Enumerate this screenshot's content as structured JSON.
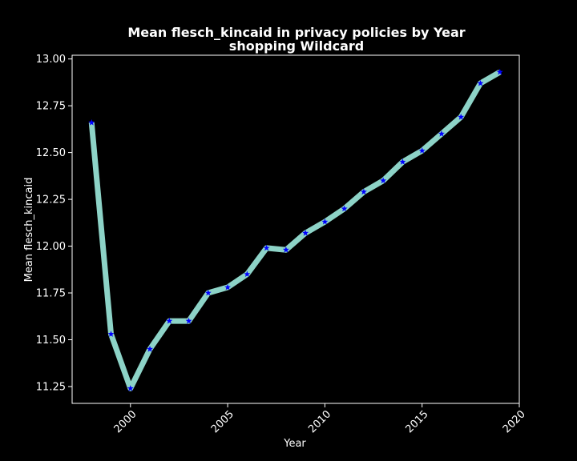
{
  "chart_data": {
    "type": "line",
    "title": "Mean flesch_kincaid in privacy policies by Year",
    "subtitle": "shopping Wildcard",
    "xlabel": "Year",
    "ylabel": "Mean flesch_kincaid",
    "xlim": [
      1997,
      2020
    ],
    "ylim": [
      11.16,
      13.02
    ],
    "xticks": [
      2000,
      2005,
      2010,
      2015,
      2020
    ],
    "yticks": [
      11.25,
      11.5,
      11.75,
      12.0,
      12.25,
      12.5,
      12.75,
      13.0
    ],
    "xtick_labels": [
      "2000",
      "2005",
      "2010",
      "2015",
      "2020"
    ],
    "ytick_labels": [
      "11.25",
      "11.50",
      "11.75",
      "12.00",
      "12.25",
      "12.50",
      "12.75",
      "13.00"
    ],
    "grid": false,
    "series": [
      {
        "x": [
          1998,
          1999,
          2000,
          2001,
          2002,
          2003,
          2004,
          2005,
          2006,
          2007,
          2008,
          2009,
          2010,
          2011,
          2012,
          2013,
          2014,
          2015,
          2016,
          2017,
          2018,
          2019
        ],
        "values": [
          12.66,
          11.53,
          11.24,
          11.45,
          11.6,
          11.6,
          11.75,
          11.78,
          11.85,
          11.99,
          11.98,
          12.07,
          12.13,
          12.2,
          12.29,
          12.35,
          12.45,
          12.51,
          12.6,
          12.69,
          12.87,
          12.93
        ],
        "line_color": "#8dd3c7",
        "marker_color": "#0000ff",
        "marker": "star"
      }
    ]
  }
}
